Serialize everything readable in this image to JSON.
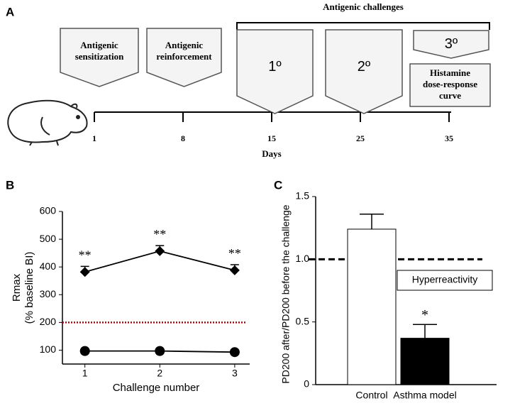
{
  "panels": [
    "A",
    "B",
    "C"
  ],
  "timeline": {
    "steps": [
      [
        "Antigenic",
        "sensitization"
      ],
      [
        "Antigenic",
        "reinforcement"
      ],
      [
        "1º"
      ],
      [
        "2º"
      ],
      [
        "3º"
      ]
    ],
    "bracket_label": "Antigenic challenges",
    "histamine": [
      "Histamine",
      "dose-response",
      "curve"
    ],
    "days": [
      1,
      8,
      15,
      25,
      35
    ],
    "x_label": "Days"
  },
  "chart_data": [
    {
      "type": "line",
      "y_label": [
        "Rmax",
        "(% baseline BI)"
      ],
      "x_label": "Challenge number",
      "x": [
        1,
        2,
        3
      ],
      "xticks": [
        1,
        2,
        3
      ],
      "xlim": [
        0.7,
        3.2
      ],
      "ylim": [
        50,
        600
      ],
      "yticks": [
        100,
        200,
        300,
        400,
        500,
        600
      ],
      "series": [
        {
          "marker": "diamond",
          "color": "#000000",
          "values": [
            382,
            457,
            388
          ],
          "errors": [
            20,
            20,
            20
          ],
          "annotations": [
            "**",
            "**",
            "**"
          ]
        },
        {
          "marker": "circle",
          "color": "#000000",
          "values": [
            97,
            97,
            93
          ]
        }
      ],
      "reference_line": {
        "value": 200,
        "color": "#c00000",
        "style": "dotted"
      }
    },
    {
      "type": "bar",
      "y_label": "PD200 after/PD200 before the challenge",
      "categories": [
        "Control",
        "Asthma model"
      ],
      "values": [
        1.24,
        0.37
      ],
      "errors": [
        0.12,
        0.11
      ],
      "colors": [
        "#ffffff",
        "#000000"
      ],
      "annotations": [
        null,
        "*"
      ],
      "ylim": [
        0,
        1.5
      ],
      "yticks": [
        0,
        0.5,
        {
          "value": 1,
          "label": "1.0"
        },
        1.5
      ],
      "reference_line": {
        "value": 1,
        "color": "#000000",
        "style": "dashed",
        "label": "Hyperreactivity"
      }
    }
  ]
}
